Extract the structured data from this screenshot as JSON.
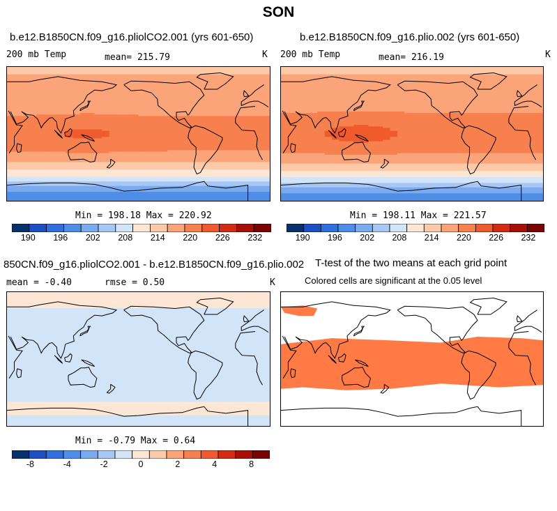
{
  "super_title": "SON",
  "panels": [
    {
      "title": "b.e12.B1850CN.f09_g16.pliolCO2.001 (yrs 601-650)",
      "left_label": "200 mb Temp",
      "center_label": "mean= 215.79",
      "units": "K",
      "stats": "Min = 198.18 Max = 220.92"
    },
    {
      "title": "b.e12.B1850CN.f09_g16.plio.002 (yrs 601-650)",
      "left_label": "200 mb Temp",
      "center_label": "mean= 216.19",
      "units": "K",
      "stats": "Min = 198.11 Max = 221.57"
    },
    {
      "title": "850CN.f09_g16.pliolCO2.001 - b.e12.B1850CN.f09_g16.plio.002",
      "left_label": "mean =  -0.40",
      "center_label": "rmse =   0.50",
      "units": "K",
      "stats": "Min =  -0.79 Max =   0.64"
    },
    {
      "title": "T-test of the two means at each grid point",
      "subtitle": "Colored cells are significant at the 0.05 level"
    }
  ],
  "colors": {
    "scale": [
      "#08306b",
      "#1c4fbf",
      "#2f6fe0",
      "#4f8ee6",
      "#7aaaf0",
      "#a7c7f4",
      "#d2e4f8",
      "#fde7d4",
      "#fccaa9",
      "#fba47a",
      "#f7804f",
      "#ef5a2e",
      "#d42c14",
      "#a81007",
      "#7a0404"
    ],
    "sig": "#ff7a45",
    "land": "#000000"
  },
  "chart_data": [
    {
      "type": "heatmap",
      "title": "b.e12.B1850CN.f09_g16.pliolCO2.001 (yrs 601-650)",
      "variable": "200 mb Temp",
      "units": "K",
      "mean": 215.79,
      "min": 198.18,
      "max": 220.92,
      "levels": [
        190,
        192,
        194,
        196,
        198,
        200,
        202,
        204,
        206,
        208,
        210,
        212,
        214,
        216,
        218,
        220,
        222,
        224,
        226,
        228,
        230,
        232
      ],
      "lat_profile": [
        {
          "lat": 90,
          "value": 214.5
        },
        {
          "lat": 60,
          "value": 216.5
        },
        {
          "lat": 40,
          "value": 216.0
        },
        {
          "lat": 20,
          "value": 218.5
        },
        {
          "lat": 0,
          "value": 219.5
        },
        {
          "lat": -20,
          "value": 218.5
        },
        {
          "lat": -40,
          "value": 215.0
        },
        {
          "lat": -55,
          "value": 210.5
        },
        {
          "lat": -65,
          "value": 206.5
        },
        {
          "lat": -75,
          "value": 202.0
        },
        {
          "lat": -90,
          "value": 199.0
        }
      ]
    },
    {
      "type": "heatmap",
      "title": "b.e12.B1850CN.f09_g16.plio.002 (yrs 601-650)",
      "variable": "200 mb Temp",
      "units": "K",
      "mean": 216.19,
      "min": 198.11,
      "max": 221.57,
      "levels": [
        190,
        192,
        194,
        196,
        198,
        200,
        202,
        204,
        206,
        208,
        210,
        212,
        214,
        216,
        218,
        220,
        222,
        224,
        226,
        228,
        230,
        232
      ],
      "lat_profile": [
        {
          "lat": 90,
          "value": 214.5
        },
        {
          "lat": 60,
          "value": 216.5
        },
        {
          "lat": 40,
          "value": 216.5
        },
        {
          "lat": 20,
          "value": 219.0
        },
        {
          "lat": 0,
          "value": 220.0
        },
        {
          "lat": -20,
          "value": 219.0
        },
        {
          "lat": -40,
          "value": 215.5
        },
        {
          "lat": -55,
          "value": 211.0
        },
        {
          "lat": -65,
          "value": 207.0
        },
        {
          "lat": -75,
          "value": 202.5
        },
        {
          "lat": -90,
          "value": 199.0
        }
      ]
    },
    {
      "type": "heatmap",
      "title": "850CN.f09_g16.pliolCO2.001 - b.e12.B1850CN.f09_g16.plio.002",
      "units": "K",
      "mean": -0.4,
      "rmse": 0.5,
      "min": -0.79,
      "max": 0.64,
      "levels": [
        -9,
        -8,
        -6,
        -5,
        -4,
        -3,
        -2,
        -1,
        0,
        1,
        2,
        3,
        4,
        5,
        6,
        8,
        9
      ],
      "colorbar_ticks": [
        -8,
        -4,
        -2,
        0,
        2,
        4,
        8
      ]
    },
    {
      "type": "heatmap",
      "title": "T-test of the two means at each grid point",
      "subtitle": "Colored cells are significant at the 0.05 level",
      "significance_level": 0.05
    }
  ],
  "colorbars": [
    {
      "ticks": [
        "190",
        "196",
        "202",
        "208",
        "214",
        "220",
        "226",
        "232"
      ],
      "n_boxes": 15
    },
    {
      "ticks": [
        "190",
        "196",
        "202",
        "208",
        "214",
        "220",
        "226",
        "232"
      ],
      "n_boxes": 15
    },
    {
      "ticks": [
        "-8",
        "-4",
        "-2",
        "0",
        "2",
        "4",
        "8"
      ],
      "n_boxes": 15
    }
  ]
}
